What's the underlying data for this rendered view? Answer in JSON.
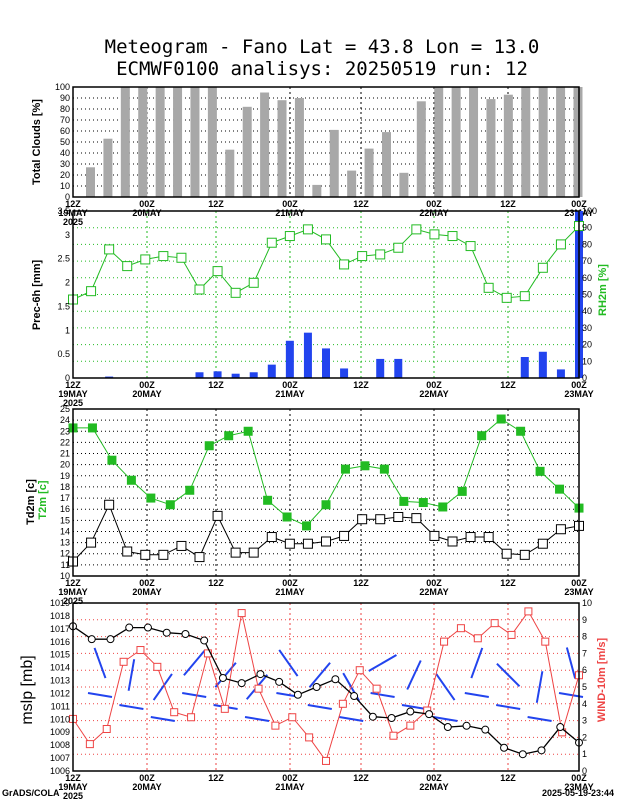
{
  "title": {
    "line1": "Meteogram - Fano Lat = 43.8 Lon = 13.0",
    "line2": "ECMWF0100 analisys: 20250519 run: 12"
  },
  "footer": {
    "left": "GrADS/COLA",
    "right": "2025-05-19-23:44"
  },
  "colors": {
    "grey_bar": "#a8a8a8",
    "green": "#22bb22",
    "blue": "#2244ee",
    "red": "#ee4444",
    "black": "#000000"
  },
  "chart_data": [
    {
      "id": "clouds",
      "type": "bar",
      "ylabel": "Total Clouds [%]",
      "ylim": [
        0,
        100
      ],
      "yticks": [
        0,
        10,
        20,
        30,
        40,
        50,
        60,
        70,
        80,
        90,
        100
      ],
      "values": [
        27,
        53,
        100,
        100,
        100,
        100,
        100,
        100,
        43,
        82,
        95,
        88,
        90,
        11,
        61,
        24,
        44,
        59,
        22,
        87,
        100,
        100,
        100,
        89,
        93,
        100,
        100,
        100,
        100
      ],
      "xaxis": {
        "hours": [
          "12Z",
          "00Z",
          "12Z",
          "00Z",
          "12Z",
          "00Z",
          "12Z",
          "00Z"
        ],
        "dates": [
          "19MAY",
          "20MAY",
          "",
          "21MAY",
          "",
          "22MAY",
          "",
          "23MAY"
        ],
        "year": "2025"
      }
    },
    {
      "id": "prec_rh",
      "type": "bar+line",
      "ylabel": "Prec-6h [mm]",
      "ylim": [
        0,
        3.5
      ],
      "yticks": [
        "0",
        "0.5",
        "1",
        "1.5",
        "2",
        "2.5",
        "3",
        "3.5"
      ],
      "precip": [
        0,
        0,
        0.03,
        0,
        0,
        0,
        0,
        0.12,
        0.14,
        0.09,
        0.12,
        0.28,
        0.78,
        0.95,
        0.62,
        0.2,
        0,
        0.4,
        0.4,
        0,
        0,
        0,
        0,
        0,
        0,
        0.44,
        0.55,
        0.18,
        3.5
      ],
      "y2label": "RH2m [%]",
      "y2lim": [
        0,
        100
      ],
      "y2ticks": [
        0,
        10,
        20,
        30,
        40,
        50,
        60,
        70,
        80,
        90,
        100
      ],
      "rh": [
        47,
        52,
        77,
        67,
        71,
        73,
        72,
        53,
        64,
        51,
        57,
        81,
        85,
        89,
        83,
        68,
        73,
        74,
        78,
        89,
        86,
        85,
        79,
        54,
        48,
        49,
        66,
        80,
        91
      ],
      "xaxis": {
        "hours": [
          "12Z",
          "00Z",
          "12Z",
          "00Z",
          "12Z",
          "00Z",
          "12Z",
          "00Z"
        ],
        "dates": [
          "19MAY",
          "20MAY",
          "",
          "21MAY",
          "",
          "22MAY",
          "",
          "23MAY"
        ],
        "year": "2025"
      }
    },
    {
      "id": "temp",
      "type": "line",
      "ylabel": "Td2m [c]",
      "ylabel2": "T2m [c]",
      "ylim": [
        10,
        25
      ],
      "yticks": [
        10,
        11,
        12,
        13,
        14,
        15,
        16,
        17,
        18,
        19,
        20,
        21,
        22,
        23,
        24,
        25
      ],
      "t2m": [
        23.3,
        23.3,
        20.4,
        18.6,
        17,
        16.4,
        17.7,
        21.7,
        22.6,
        23,
        16.8,
        15.3,
        14.5,
        16.4,
        19.6,
        19.9,
        19.6,
        16.7,
        16.6,
        16.2,
        17.6,
        22.6,
        24.1,
        23,
        19.4,
        17.8,
        16.1
      ],
      "td2m": [
        11.3,
        13,
        16.4,
        12.2,
        11.9,
        11.9,
        12.7,
        11.7,
        15.4,
        12.1,
        12.1,
        13.5,
        12.9,
        12.9,
        13.1,
        13.6,
        15.1,
        15.1,
        15.3,
        15.2,
        13.6,
        13.1,
        13.5,
        13.5,
        12,
        11.9,
        12.9,
        14.2,
        14.5
      ],
      "xaxis": {
        "hours": [
          "12Z",
          "00Z",
          "12Z",
          "00Z",
          "12Z",
          "00Z",
          "12Z",
          "00Z"
        ],
        "dates": [
          "19MAY",
          "20MAY",
          "",
          "21MAY",
          "",
          "22MAY",
          "",
          "23MAY"
        ],
        "year": "2025"
      }
    },
    {
      "id": "mslp_wind",
      "type": "line",
      "ylabel": "mslp [mb]",
      "ylim": [
        1006,
        1019
      ],
      "yticks": [
        1006,
        1007,
        1008,
        1009,
        1010,
        1011,
        1012,
        1013,
        1014,
        1015,
        1016,
        1017,
        1018,
        1019
      ],
      "mslp": [
        1017.2,
        1016.2,
        1016.2,
        1017.1,
        1017.1,
        1016.7,
        1016.6,
        1016.1,
        1013.2,
        1012.8,
        1013.5,
        1012.9,
        1011.9,
        1012.5,
        1013.1,
        1011.8,
        1010.2,
        1010.1,
        1010.6,
        1010.4,
        1009.4,
        1009.5,
        1009.2,
        1007.8,
        1007.3,
        1007.6,
        1009.4,
        1008.2
      ],
      "y2label": "WIND-10m [m/s]",
      "y2lim": [
        0,
        10
      ],
      "y2ticks": [
        0,
        1,
        2,
        3,
        4,
        5,
        6,
        7,
        8,
        9,
        10
      ],
      "wind": [
        3.1,
        1.6,
        2.5,
        6.5,
        7.2,
        6.2,
        3.5,
        3.2,
        7,
        3.7,
        9.4,
        4.9,
        2.7,
        3.2,
        2,
        0.6,
        4,
        6,
        4.9,
        2.1,
        2.7,
        3.6,
        7.7,
        8.5,
        7.9,
        8.8,
        8.1,
        9.5,
        7.7,
        2.3,
        5.7
      ],
      "xaxis": {
        "hours": [
          "12Z",
          "00Z",
          "12Z",
          "00Z",
          "12Z",
          "00Z",
          "12Z",
          "00Z"
        ],
        "dates": [
          "19MAY",
          "20MAY",
          "",
          "21MAY",
          "",
          "22MAY",
          "",
          "23MAY"
        ],
        "year": "2025"
      }
    }
  ]
}
